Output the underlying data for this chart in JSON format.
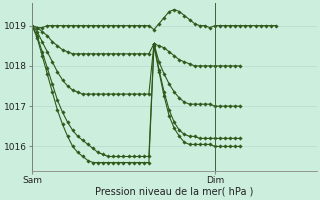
{
  "xlabel": "Pression niveau de la mer( hPa )",
  "background_color": "#cceedd",
  "grid_color": "#b8ddd0",
  "line_color": "#2d5a1b",
  "marker_color": "#2d5a1b",
  "ylim": [
    1015.4,
    1019.55
  ],
  "yticks": [
    1016,
    1017,
    1018,
    1019
  ],
  "xlim": [
    0,
    56
  ],
  "sam_x": 0,
  "dim_x": 36,
  "lines": [
    {
      "x": [
        0,
        1,
        2,
        3,
        4,
        5,
        6,
        7,
        8,
        9,
        10,
        11,
        12,
        13,
        14,
        15,
        16,
        17,
        18,
        19,
        20,
        21,
        22,
        23,
        24,
        25,
        26,
        27,
        28,
        29,
        30,
        31,
        32,
        33,
        34,
        35,
        36,
        37,
        38,
        39,
        40,
        41,
        42,
        43,
        44,
        45,
        46,
        47,
        48
      ],
      "y": [
        1019.0,
        1018.95,
        1018.95,
        1019.0,
        1019.0,
        1019.0,
        1019.0,
        1019.0,
        1019.0,
        1019.0,
        1019.0,
        1019.0,
        1019.0,
        1019.0,
        1019.0,
        1019.0,
        1019.0,
        1019.0,
        1019.0,
        1019.0,
        1019.0,
        1019.0,
        1019.0,
        1019.0,
        1018.9,
        1019.05,
        1019.2,
        1019.35,
        1019.4,
        1019.35,
        1019.25,
        1019.15,
        1019.05,
        1019.0,
        1019.0,
        1018.95,
        1019.0,
        1019.0,
        1019.0,
        1019.0,
        1019.0,
        1019.0,
        1019.0,
        1019.0,
        1019.0,
        1019.0,
        1019.0,
        1019.0,
        1019.0
      ]
    },
    {
      "x": [
        0,
        1,
        2,
        3,
        4,
        5,
        6,
        7,
        8,
        9,
        10,
        11,
        12,
        13,
        14,
        15,
        16,
        17,
        18,
        19,
        20,
        21,
        22,
        23,
        24,
        25,
        26,
        27,
        28,
        29,
        30,
        31,
        32,
        33,
        34,
        35,
        36,
        37,
        38,
        39,
        40,
        41
      ],
      "y": [
        1019.0,
        1018.95,
        1018.85,
        1018.75,
        1018.6,
        1018.5,
        1018.4,
        1018.35,
        1018.3,
        1018.3,
        1018.3,
        1018.3,
        1018.3,
        1018.3,
        1018.3,
        1018.3,
        1018.3,
        1018.3,
        1018.3,
        1018.3,
        1018.3,
        1018.3,
        1018.3,
        1018.3,
        1018.55,
        1018.5,
        1018.45,
        1018.35,
        1018.25,
        1018.15,
        1018.1,
        1018.05,
        1018.0,
        1018.0,
        1018.0,
        1018.0,
        1018.0,
        1018.0,
        1018.0,
        1018.0,
        1018.0,
        1018.0
      ]
    },
    {
      "x": [
        0,
        1,
        2,
        3,
        4,
        5,
        6,
        7,
        8,
        9,
        10,
        11,
        12,
        13,
        14,
        15,
        16,
        17,
        18,
        19,
        20,
        21,
        22,
        23,
        24,
        25,
        26,
        27,
        28,
        29,
        30,
        31,
        32,
        33,
        34,
        35,
        36,
        37,
        38,
        39,
        40,
        41
      ],
      "y": [
        1019.0,
        1018.85,
        1018.6,
        1018.35,
        1018.1,
        1017.85,
        1017.65,
        1017.5,
        1017.4,
        1017.35,
        1017.3,
        1017.3,
        1017.3,
        1017.3,
        1017.3,
        1017.3,
        1017.3,
        1017.3,
        1017.3,
        1017.3,
        1017.3,
        1017.3,
        1017.3,
        1017.3,
        1018.55,
        1018.1,
        1017.8,
        1017.55,
        1017.35,
        1017.2,
        1017.1,
        1017.05,
        1017.05,
        1017.05,
        1017.05,
        1017.05,
        1017.0,
        1017.0,
        1017.0,
        1017.0,
        1017.0,
        1017.0
      ]
    },
    {
      "x": [
        0,
        1,
        2,
        3,
        4,
        5,
        6,
        7,
        8,
        9,
        10,
        11,
        12,
        13,
        14,
        15,
        16,
        17,
        18,
        19,
        20,
        21,
        22,
        23,
        24,
        25,
        26,
        27,
        28,
        29,
        30,
        31,
        32,
        33,
        34,
        35,
        36,
        37,
        38,
        39,
        40,
        41
      ],
      "y": [
        1019.0,
        1018.75,
        1018.35,
        1017.95,
        1017.55,
        1017.15,
        1016.85,
        1016.6,
        1016.4,
        1016.25,
        1016.15,
        1016.05,
        1015.95,
        1015.85,
        1015.8,
        1015.75,
        1015.75,
        1015.75,
        1015.75,
        1015.75,
        1015.75,
        1015.75,
        1015.75,
        1015.75,
        1018.55,
        1017.9,
        1017.35,
        1016.9,
        1016.6,
        1016.4,
        1016.3,
        1016.25,
        1016.25,
        1016.2,
        1016.2,
        1016.2,
        1016.2,
        1016.2,
        1016.2,
        1016.2,
        1016.2,
        1016.2
      ]
    },
    {
      "x": [
        0,
        1,
        2,
        3,
        4,
        5,
        6,
        7,
        8,
        9,
        10,
        11,
        12,
        13,
        14,
        15,
        16,
        17,
        18,
        19,
        20,
        21,
        22,
        23,
        24,
        25,
        26,
        27,
        28,
        29,
        30,
        31,
        32,
        33,
        34,
        35,
        36,
        37,
        38,
        39,
        40,
        41
      ],
      "y": [
        1019.0,
        1018.7,
        1018.25,
        1017.8,
        1017.35,
        1016.9,
        1016.55,
        1016.25,
        1016.0,
        1015.85,
        1015.75,
        1015.65,
        1015.6,
        1015.6,
        1015.6,
        1015.6,
        1015.6,
        1015.6,
        1015.6,
        1015.6,
        1015.6,
        1015.6,
        1015.6,
        1015.6,
        1018.5,
        1017.85,
        1017.25,
        1016.75,
        1016.45,
        1016.25,
        1016.1,
        1016.05,
        1016.05,
        1016.05,
        1016.05,
        1016.05,
        1016.0,
        1016.0,
        1016.0,
        1016.0,
        1016.0,
        1016.0
      ]
    }
  ]
}
